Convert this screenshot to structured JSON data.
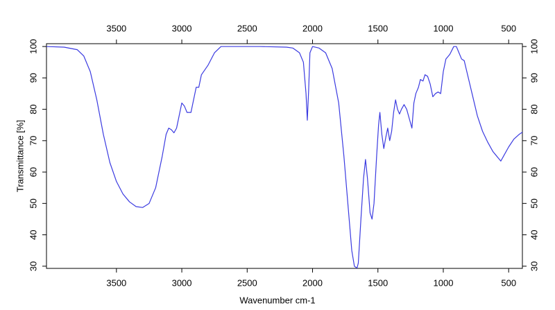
{
  "chart_data": {
    "type": "line",
    "xlabel": "Wavenumber cm-1",
    "ylabel": "Transmittance [%]",
    "color": "#3a3ae0",
    "xlim": [
      4035,
      395
    ],
    "ylim": [
      29.3,
      100.9
    ],
    "xticks": [
      3500,
      3000,
      2500,
      2000,
      1500,
      1000,
      500
    ],
    "yticks": [
      30,
      40,
      50,
      60,
      70,
      80,
      90,
      100
    ],
    "x": [
      4035,
      3900,
      3800,
      3750,
      3700,
      3650,
      3600,
      3550,
      3500,
      3450,
      3400,
      3350,
      3300,
      3250,
      3200,
      3150,
      3120,
      3100,
      3080,
      3060,
      3040,
      3020,
      3000,
      2980,
      2960,
      2930,
      2910,
      2890,
      2870,
      2850,
      2800,
      2750,
      2700,
      2600,
      2400,
      2200,
      2150,
      2100,
      2070,
      2050,
      2040,
      2030,
      2020,
      2000,
      1950,
      1900,
      1850,
      1800,
      1760,
      1720,
      1700,
      1680,
      1660,
      1650,
      1630,
      1610,
      1595,
      1580,
      1560,
      1545,
      1530,
      1510,
      1495,
      1485,
      1470,
      1455,
      1440,
      1425,
      1410,
      1395,
      1380,
      1365,
      1350,
      1335,
      1320,
      1300,
      1280,
      1260,
      1240,
      1225,
      1210,
      1190,
      1175,
      1155,
      1140,
      1120,
      1100,
      1080,
      1060,
      1040,
      1020,
      1000,
      980,
      950,
      920,
      900,
      880,
      860,
      840,
      820,
      780,
      740,
      700,
      660,
      620,
      600,
      580,
      560,
      540,
      500,
      460,
      420,
      395
    ],
    "values": [
      100,
      99.8,
      99,
      97,
      92,
      83,
      72,
      63,
      57,
      53,
      50.5,
      49,
      48.7,
      50,
      55,
      65,
      72,
      74,
      73.5,
      72.5,
      74,
      78,
      82,
      81,
      79,
      79,
      83,
      87,
      87,
      91,
      94,
      98,
      100,
      100,
      100,
      99.8,
      99.5,
      98,
      95,
      85,
      76.5,
      86,
      98,
      100,
      99.5,
      98,
      93,
      82,
      65,
      45,
      35,
      30,
      29.4,
      31,
      45,
      58,
      64,
      58,
      47,
      45,
      50,
      65,
      75,
      79,
      72,
      67.5,
      71,
      74,
      70,
      73,
      79,
      83,
      80,
      78.5,
      80,
      81.5,
      80,
      77,
      74,
      82,
      85,
      87,
      89.5,
      89,
      91,
      90.5,
      88,
      84,
      85,
      85.5,
      85,
      92,
      96,
      97.5,
      100,
      100,
      98,
      96,
      95.5,
      92,
      85,
      78,
      73,
      69.5,
      66.5,
      65.5,
      64.5,
      63.5,
      65,
      68,
      70.5,
      72,
      72.7
    ]
  }
}
